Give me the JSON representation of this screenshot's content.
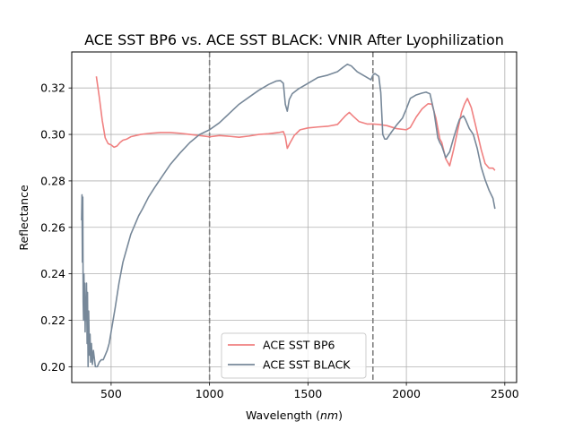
{
  "chart_data": {
    "type": "line",
    "title": "ACE SST BP6 vs. ACE SST BLACK: VNIR After Lyophilization",
    "xlabel": "Wavelength",
    "xlabel_unit": "nm",
    "ylabel": "Reflectance",
    "xlim": [
      300,
      2560
    ],
    "ylim": [
      0.1932,
      0.3355
    ],
    "xticks": [
      500,
      1000,
      1500,
      2000,
      2500
    ],
    "yticks": [
      0.2,
      0.22,
      0.24,
      0.26,
      0.28,
      0.3,
      0.32
    ],
    "xtick_labels": [
      "500",
      "1000",
      "1500",
      "2000",
      "2500"
    ],
    "ytick_labels": [
      "0.20",
      "0.22",
      "0.24",
      "0.26",
      "0.28",
      "0.30",
      "0.32"
    ],
    "grid": true,
    "legend_position": "lower-center",
    "vertical_lines": [
      1000,
      1830
    ],
    "series": [
      {
        "name": "ACE SST BP6",
        "color": "#f08080",
        "x": [
          425,
          440,
          455,
          470,
          485,
          500,
          515,
          530,
          545,
          560,
          580,
          600,
          650,
          700,
          750,
          800,
          850,
          900,
          950,
          1000,
          1050,
          1100,
          1150,
          1200,
          1250,
          1300,
          1350,
          1375,
          1385,
          1395,
          1410,
          1430,
          1460,
          1500,
          1550,
          1600,
          1650,
          1690,
          1710,
          1730,
          1760,
          1800,
          1830,
          1860,
          1900,
          1950,
          2000,
          2020,
          2050,
          2080,
          2110,
          2130,
          2150,
          2170,
          2180,
          2200,
          2220,
          2240,
          2260,
          2280,
          2295,
          2310,
          2330,
          2350,
          2380,
          2400,
          2420,
          2440,
          2450
        ],
        "y": [
          0.325,
          0.316,
          0.306,
          0.2985,
          0.296,
          0.2955,
          0.2945,
          0.295,
          0.2965,
          0.2975,
          0.298,
          0.299,
          0.3,
          0.3005,
          0.3008,
          0.3008,
          0.3005,
          0.3,
          0.2995,
          0.299,
          0.2995,
          0.2992,
          0.2988,
          0.2993,
          0.3,
          0.3003,
          0.3008,
          0.3012,
          0.299,
          0.294,
          0.2965,
          0.2995,
          0.302,
          0.3028,
          0.3032,
          0.3035,
          0.3043,
          0.308,
          0.3095,
          0.3078,
          0.3055,
          0.3045,
          0.3045,
          0.3043,
          0.3038,
          0.3025,
          0.302,
          0.303,
          0.3075,
          0.311,
          0.3132,
          0.313,
          0.307,
          0.298,
          0.2965,
          0.2895,
          0.2865,
          0.2935,
          0.3015,
          0.3095,
          0.313,
          0.3155,
          0.3115,
          0.3045,
          0.2935,
          0.2875,
          0.2855,
          0.2855,
          0.2845
        ]
      },
      {
        "name": "ACE SST BLACK",
        "color": "#778899",
        "x": [
          350,
          352,
          354,
          356,
          358,
          360,
          362,
          364,
          366,
          368,
          370,
          372,
          375,
          378,
          380,
          383,
          386,
          390,
          393,
          396,
          400,
          405,
          410,
          420,
          430,
          440,
          450,
          460,
          470,
          480,
          490,
          500,
          520,
          540,
          560,
          580,
          600,
          620,
          640,
          660,
          690,
          720,
          760,
          800,
          850,
          900,
          950,
          1000,
          1050,
          1100,
          1150,
          1200,
          1250,
          1300,
          1340,
          1360,
          1375,
          1385,
          1395,
          1405,
          1420,
          1450,
          1500,
          1550,
          1600,
          1650,
          1680,
          1700,
          1720,
          1750,
          1790,
          1820,
          1830,
          1840,
          1860,
          1870,
          1880,
          1890,
          1900,
          1920,
          1950,
          1980,
          2000,
          2020,
          2050,
          2080,
          2100,
          2120,
          2140,
          2160,
          2170,
          2180,
          2200,
          2220,
          2240,
          2260,
          2270,
          2290,
          2300,
          2320,
          2340,
          2360,
          2380,
          2400,
          2420,
          2440,
          2450
        ],
        "y": [
          0.263,
          0.274,
          0.245,
          0.273,
          0.228,
          0.22,
          0.24,
          0.222,
          0.236,
          0.215,
          0.227,
          0.22,
          0.236,
          0.21,
          0.232,
          0.2,
          0.224,
          0.205,
          0.214,
          0.202,
          0.21,
          0.201,
          0.207,
          0.2,
          0.2,
          0.202,
          0.203,
          0.203,
          0.205,
          0.207,
          0.21,
          0.215,
          0.225,
          0.236,
          0.245,
          0.251,
          0.257,
          0.261,
          0.265,
          0.268,
          0.273,
          0.277,
          0.282,
          0.287,
          0.292,
          0.2965,
          0.3,
          0.302,
          0.305,
          0.309,
          0.313,
          0.316,
          0.319,
          0.3215,
          0.323,
          0.3232,
          0.322,
          0.313,
          0.31,
          0.315,
          0.3175,
          0.3195,
          0.322,
          0.3245,
          0.3255,
          0.327,
          0.329,
          0.3302,
          0.3295,
          0.327,
          0.325,
          0.3235,
          0.3255,
          0.3262,
          0.325,
          0.318,
          0.3,
          0.298,
          0.298,
          0.3005,
          0.304,
          0.307,
          0.311,
          0.3155,
          0.317,
          0.3178,
          0.3182,
          0.3175,
          0.31,
          0.2985,
          0.2965,
          0.295,
          0.29,
          0.2925,
          0.2985,
          0.304,
          0.3065,
          0.308,
          0.3065,
          0.3025,
          0.3,
          0.294,
          0.286,
          0.2805,
          0.276,
          0.2725,
          0.268
        ]
      }
    ]
  }
}
